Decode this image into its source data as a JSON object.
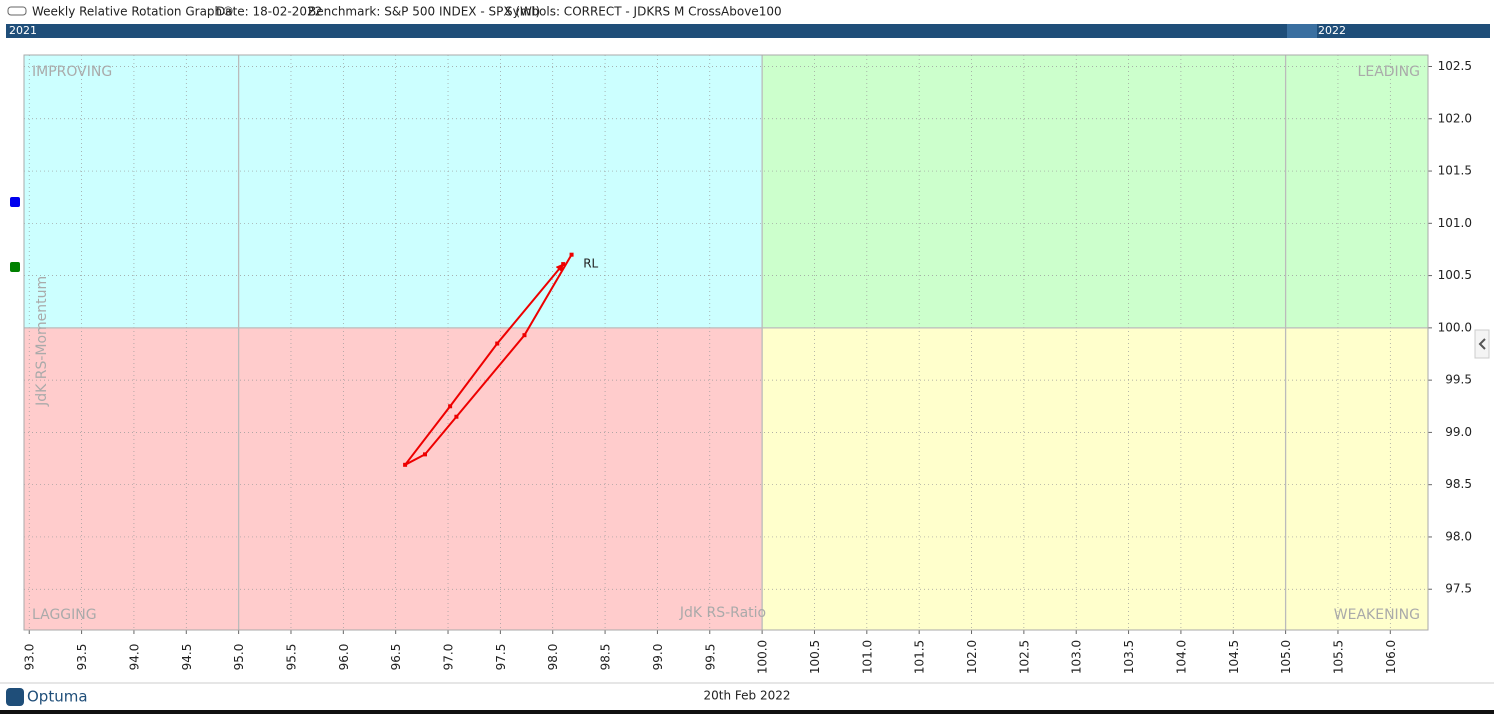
{
  "header": {
    "title": "Weekly Relative Rotation Graph®",
    "date": "Date: 18-02-2022",
    "benchmark": "Benchmark: S&P 500 INDEX - SPX (WI)",
    "symbols": "Symbols: CORRECT - JDKRS M CrossAbove100"
  },
  "timeline": {
    "start_label": "2021",
    "end_label": "2022"
  },
  "footer": {
    "brand": "Optuma",
    "date": "20th Feb 2022"
  },
  "chart_data": {
    "type": "line",
    "x_label": "JdK RS-Ratio",
    "y_label": "JdK RS-Momentum",
    "quadrant_labels": {
      "top_left": "IMPROVING",
      "top_right": "LEADING",
      "bottom_left": "LAGGING",
      "bottom_right": "WEAKENING"
    },
    "quadrant_colors": {
      "top_left": "#ccffff",
      "top_right": "#ccffcc",
      "bottom_left": "#ffcccc",
      "bottom_right": "#ffffcc"
    },
    "quadrant_center": {
      "x": 100,
      "y": 100
    },
    "major_grid_x": [
      95,
      100,
      105
    ],
    "grid": true,
    "xlim": [
      92.95,
      106.36
    ],
    "ylim": [
      97.11,
      102.61
    ],
    "xticks": [
      {
        "value": 93,
        "label": "93.0"
      },
      {
        "value": 93.5,
        "label": "93.5"
      },
      {
        "value": 94,
        "label": "94.0"
      },
      {
        "value": 94.5,
        "label": "94.5"
      },
      {
        "value": 95,
        "label": "95.0"
      },
      {
        "value": 95.5,
        "label": "95.5"
      },
      {
        "value": 96,
        "label": "96.0"
      },
      {
        "value": 96.5,
        "label": "96.5"
      },
      {
        "value": 97,
        "label": "97.0"
      },
      {
        "value": 97.5,
        "label": "97.5"
      },
      {
        "value": 98,
        "label": "98.0"
      },
      {
        "value": 98.5,
        "label": "98.5"
      },
      {
        "value": 99,
        "label": "99.0"
      },
      {
        "value": 99.5,
        "label": "99.5"
      },
      {
        "value": 100,
        "label": "100.0"
      },
      {
        "value": 100.5,
        "label": "100.5"
      },
      {
        "value": 101,
        "label": "101.0"
      },
      {
        "value": 101.5,
        "label": "101.5"
      },
      {
        "value": 102,
        "label": "102.0"
      },
      {
        "value": 102.5,
        "label": "102.5"
      },
      {
        "value": 103,
        "label": "103.0"
      },
      {
        "value": 103.5,
        "label": "103.5"
      },
      {
        "value": 104,
        "label": "104.0"
      },
      {
        "value": 104.5,
        "label": "104.5"
      },
      {
        "value": 105,
        "label": "105.0"
      },
      {
        "value": 105.5,
        "label": "105.5"
      },
      {
        "value": 106,
        "label": "106.0"
      }
    ],
    "yticks": [
      {
        "value": 97.5,
        "label": "97.5"
      },
      {
        "value": 98,
        "label": "98.0"
      },
      {
        "value": 98.5,
        "label": "98.5"
      },
      {
        "value": 99,
        "label": "99.0"
      },
      {
        "value": 99.5,
        "label": "99.5"
      },
      {
        "value": 100,
        "label": "100.0"
      },
      {
        "value": 100.5,
        "label": "100.5"
      },
      {
        "value": 101,
        "label": "101.0"
      },
      {
        "value": 101.5,
        "label": "101.5"
      },
      {
        "value": 102,
        "label": "102.0"
      },
      {
        "value": 102.5,
        "label": "102.5"
      }
    ],
    "series": [
      {
        "name": "RL",
        "color": "#ee0000",
        "x": [
          98.18,
          97.73,
          97.08,
          96.78,
          96.59,
          97.02,
          97.47,
          98.1
        ],
        "values": [
          100.7,
          99.93,
          99.15,
          98.79,
          98.69,
          99.25,
          99.85,
          100.61
        ]
      }
    ]
  }
}
